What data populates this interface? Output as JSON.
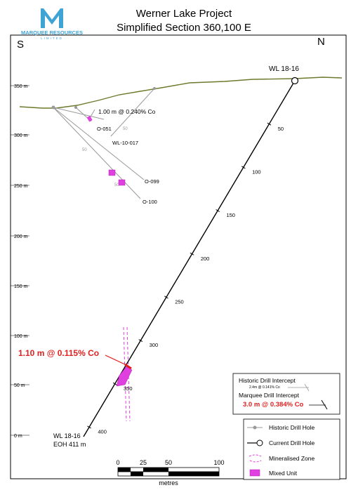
{
  "logo": {
    "company": "MARQUEE RESOURCES",
    "sub": "LIMITED"
  },
  "title": {
    "line1": "Werner Lake Project",
    "line2": "Simplified Section 360,100 E"
  },
  "compass": {
    "south": "S",
    "north": "N"
  },
  "elevation_ticks": [
    "350 m",
    "300 m",
    "250 m",
    "200 m",
    "150 m",
    "100 m",
    "50 m",
    "0 m"
  ],
  "current_hole": {
    "collar_label": "WL 18-16",
    "end_label": "WL 18-16",
    "eoh_label": "EOH 411 m",
    "depth_ticks": [
      "50",
      "100",
      "150",
      "200",
      "250",
      "300",
      "350",
      "400"
    ],
    "intercept_label": "1.10 m @ 0.115% Co"
  },
  "historic": {
    "intercept_label": "1.00 m @ 0.240% Co",
    "holes": [
      "O-051",
      "WL-10-017",
      "O-099",
      "O-100"
    ],
    "depth_ticks": [
      "50",
      "50",
      "50"
    ]
  },
  "intercept_legend": {
    "historic_title": "Historic Drill Intercept",
    "historic_example": "2.4m @ 0.141% Co",
    "marquee_title": "Marquee Drill Intercept",
    "marquee_example": "3.0 m @ 0.384% Co"
  },
  "legend": {
    "items": [
      "Historic Drill Hole",
      "Current Drill Hole",
      "Mineralised Zone",
      "Mixed Unit"
    ]
  },
  "scale": {
    "ticks": [
      "0",
      "25",
      "50",
      "100"
    ],
    "unit": "metres"
  },
  "colors": {
    "topo": "#6b7a2a",
    "magenta": "#e040e0",
    "red": "#e02020",
    "historic": "#999999",
    "logo_blue": "#3fa3d6"
  }
}
